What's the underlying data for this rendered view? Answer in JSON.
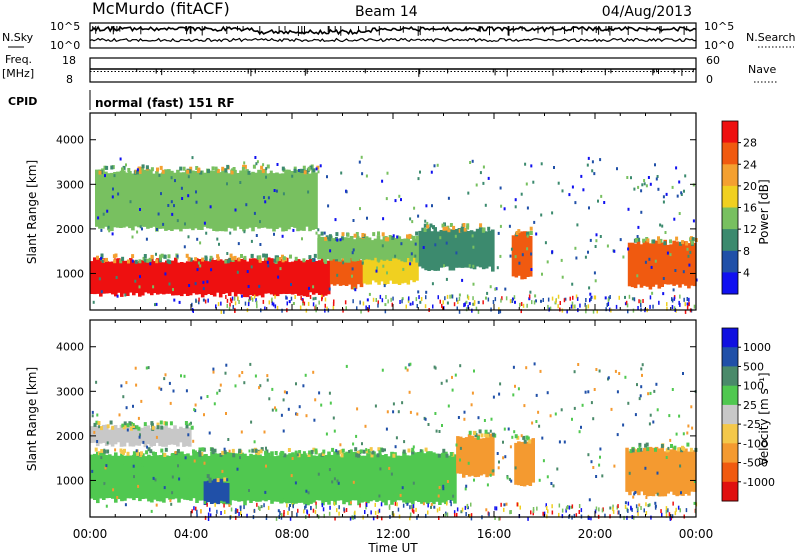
{
  "header": {
    "station": "McMurdo (fitACF)",
    "beam": "Beam 14",
    "date": "04/Aug/2013"
  },
  "noise_panel": {
    "left_label": "N.Sky",
    "left_ticks": [
      "10^5",
      "10^0"
    ],
    "right_ticks": [
      "10^5",
      "10^0"
    ],
    "right_label": "N.Search"
  },
  "freq_panel": {
    "left_label_line1": "Freq.",
    "left_label_line2": "[MHz]",
    "left_ticks": [
      "18",
      "8"
    ],
    "right_ticks": [
      "60",
      "0"
    ],
    "right_label": "Nave"
  },
  "cpid": {
    "label": "CPID",
    "text": "normal (fast) 151 RF"
  },
  "time_axis": {
    "label": "Time UT",
    "ticks": [
      "00:00",
      "04:00",
      "08:00",
      "12:00",
      "16:00",
      "20:00",
      "00:00"
    ]
  },
  "colors": {
    "power": [
      "#1010f0",
      "#2050a8",
      "#3c8a6e",
      "#78c060",
      "#f0d020",
      "#f4a030",
      "#f05a10",
      "#ee1010"
    ],
    "velocity": [
      "#e01010",
      "#f05a10",
      "#f49a30",
      "#f4c84a",
      "#c8c8c8",
      "#50c850",
      "#4a8a6a",
      "#2050a8",
      "#1010e0"
    ]
  },
  "chart_data": [
    {
      "type": "heatmap",
      "ylabel": "Slant Range [km]",
      "ylim": [
        180,
        4600
      ],
      "yticks": [
        1000,
        2000,
        3000,
        4000
      ],
      "xlim": [
        0,
        24
      ],
      "xticks": [
        0,
        4,
        8,
        12,
        16,
        20,
        24
      ],
      "colorbar": {
        "label": "Power [dB]",
        "ticks": [
          "4",
          "8",
          "12",
          "16",
          "20",
          "24",
          "28"
        ],
        "range": [
          0,
          32
        ]
      },
      "regions": [
        {
          "t0": 0.0,
          "t1": 9.5,
          "r0": 520,
          "r1": 1300,
          "value": 28
        },
        {
          "t0": 9.5,
          "t1": 10.8,
          "r0": 700,
          "r1": 1350,
          "value": 26
        },
        {
          "t0": 10.8,
          "t1": 13.0,
          "r0": 800,
          "r1": 1500,
          "value": 16
        },
        {
          "t0": 13.0,
          "t1": 16.0,
          "r0": 1100,
          "r1": 2000,
          "value": 8
        },
        {
          "t0": 16.7,
          "t1": 17.5,
          "r0": 900,
          "r1": 1900,
          "value": 24
        },
        {
          "t0": 21.3,
          "t1": 24.0,
          "r0": 700,
          "r1": 1700,
          "value": 26
        },
        {
          "t0": 0.2,
          "t1": 9.0,
          "r0": 2000,
          "r1": 3300,
          "value": 12
        },
        {
          "t0": 9.0,
          "t1": 13.0,
          "r0": 1300,
          "r1": 1800,
          "value": 12
        }
      ]
    },
    {
      "type": "heatmap",
      "ylabel": "Slant Range [km]",
      "ylim": [
        180,
        4600
      ],
      "yticks": [
        1000,
        2000,
        3000,
        4000
      ],
      "xlim": [
        0,
        24
      ],
      "xticks": [
        0,
        4,
        8,
        12,
        16,
        20,
        24
      ],
      "colorbar": {
        "label": "Velocity [m s⁻¹]",
        "ticks": [
          "1000",
          "500",
          "100",
          "25",
          "-25",
          "-100",
          "-500",
          "-1000"
        ]
      },
      "regions": [
        {
          "t0": 0.0,
          "t1": 5.0,
          "r0": 550,
          "r1": 1600,
          "value": 100
        },
        {
          "t0": 5.0,
          "t1": 14.5,
          "r0": 500,
          "r1": 1600,
          "value": 50
        },
        {
          "t0": 14.5,
          "t1": 16.0,
          "r0": 1100,
          "r1": 2000,
          "value": -100
        },
        {
          "t0": 16.8,
          "t1": 17.6,
          "r0": 900,
          "r1": 1900,
          "value": -100
        },
        {
          "t0": 21.2,
          "t1": 24.0,
          "r0": 700,
          "r1": 1700,
          "value": -100
        },
        {
          "t0": 0.0,
          "t1": 4.0,
          "r0": 1800,
          "r1": 2200,
          "value": 0
        },
        {
          "t0": 4.5,
          "t1": 5.5,
          "r0": 500,
          "r1": 1000,
          "value": 1000
        }
      ]
    }
  ]
}
